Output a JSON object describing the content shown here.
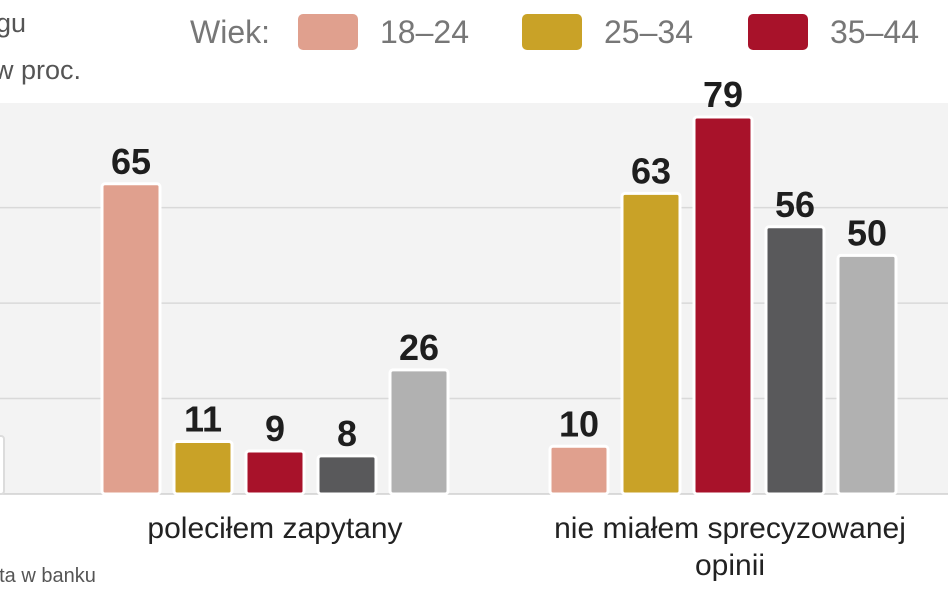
{
  "header": {
    "subtitle_line1": "gu",
    "subtitle_line2": "w proc."
  },
  "legend": {
    "title": "Wiek:",
    "items": [
      {
        "label": "18–24",
        "color": "#e0a08e"
      },
      {
        "label": "25–34",
        "color": "#c9a227"
      },
      {
        "label": "35–44",
        "color": "#a8122a"
      }
    ]
  },
  "chart_data": {
    "type": "bar",
    "categories": [
      "poleciłem zapytany",
      "nie miałem sprecyzowanej opinii"
    ],
    "series": [
      {
        "name": "18–24",
        "color": "#e0a08e",
        "values": [
          65,
          10
        ]
      },
      {
        "name": "25–34",
        "color": "#c9a227",
        "values": [
          11,
          63
        ]
      },
      {
        "name": "35–44",
        "color": "#a8122a",
        "values": [
          9,
          79
        ]
      },
      {
        "color": "#59595b",
        "values": [
          8,
          56
        ]
      },
      {
        "color": "#b1b1b1",
        "values": [
          26,
          50
        ]
      }
    ],
    "ylim": [
      0,
      80
    ],
    "grid": true,
    "data_labels": true,
    "legend_position": "top"
  },
  "footer": {
    "note": "nta w banku"
  }
}
